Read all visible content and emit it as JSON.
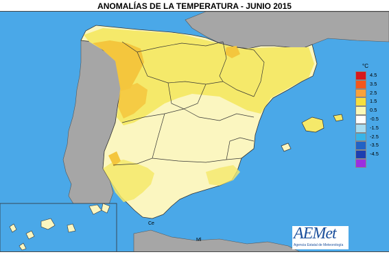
{
  "map": {
    "title": "ANOMALÍAS DE LA TEMPERATURA - JUNIO 2015",
    "colors": {
      "sea": "#4aa8e8",
      "land_other": "#a6a6a6",
      "anomaly_0_1": "#fbf6c0",
      "anomaly_1_2": "#f5e96a",
      "anomaly_2_3": "#f4c63d",
      "border": "#333333"
    },
    "labels": {
      "ceuta": "Ce",
      "melilla": "Ml"
    }
  },
  "legend": {
    "unit": "°C",
    "items": [
      {
        "label": "4.5",
        "color": "#d7191c"
      },
      {
        "label": "3.5",
        "color": "#f4571c"
      },
      {
        "label": "2.5",
        "color": "#f9a13a"
      },
      {
        "label": "1.5",
        "color": "#f6df3f"
      },
      {
        "label": "0.5",
        "color": "#fbf8b7"
      },
      {
        "label": "-0.5",
        "color": "#ffffff"
      },
      {
        "label": "-1.5",
        "color": "#a6dcf1"
      },
      {
        "label": "-2.5",
        "color": "#38b4e8"
      },
      {
        "label": "-3.5",
        "color": "#2162c5"
      },
      {
        "label": "-4.5",
        "color": "#1d3eb0"
      },
      {
        "label": "",
        "color": "#9b2ee0"
      }
    ]
  },
  "logo": {
    "name": "AEMet",
    "subtitle": "Agencia Estatal de Meteorología"
  }
}
